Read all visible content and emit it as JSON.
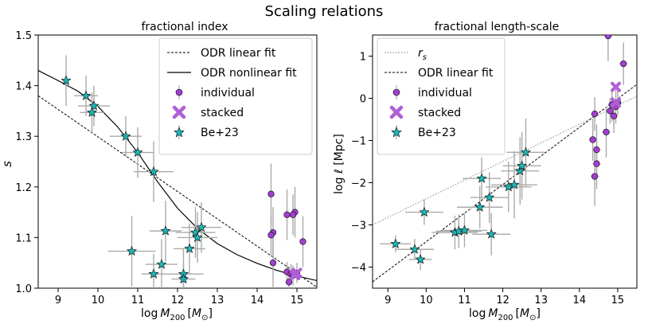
{
  "figure": {
    "title": "Scaling relations"
  },
  "colors": {
    "individual": "#a23fd0",
    "stacked": "#b05fd6",
    "be23": "#1fb5b5",
    "errorbar": "#aaaaaa",
    "rs": "#999999"
  },
  "chart_data": [
    {
      "type": "scatter",
      "title": "fractional index",
      "xlabel": "log M_200 [M_⊙]",
      "ylabel": "s",
      "xlim": [
        8.5,
        15.5
      ],
      "ylim": [
        1.0,
        1.5
      ],
      "xticks": [
        9,
        10,
        11,
        12,
        13,
        14,
        15
      ],
      "yticks": [
        1.0,
        1.1,
        1.2,
        1.3,
        1.4,
        1.5
      ],
      "ytick_labels": [
        "1.0",
        "1.1",
        "1.2",
        "1.3",
        "1.4",
        "1.5"
      ],
      "legend": {
        "position": "top-right",
        "entries": [
          "ODR linear fit",
          "ODR nonlinear fit",
          "individual",
          "stacked",
          "Be+23"
        ]
      },
      "fits": {
        "linear": [
          [
            8.5,
            1.38
          ],
          [
            15.5,
            1.002
          ]
        ],
        "nonlinear": [
          [
            8.5,
            1.43
          ],
          [
            9.0,
            1.41
          ],
          [
            9.5,
            1.389
          ],
          [
            10.0,
            1.359
          ],
          [
            10.5,
            1.318
          ],
          [
            11.0,
            1.268
          ],
          [
            11.5,
            1.21
          ],
          [
            12.0,
            1.158
          ],
          [
            12.5,
            1.118
          ],
          [
            13.0,
            1.088
          ],
          [
            13.5,
            1.066
          ],
          [
            14.0,
            1.049
          ],
          [
            14.5,
            1.035
          ],
          [
            15.0,
            1.024
          ],
          [
            15.5,
            1.015
          ]
        ]
      },
      "series": [
        {
          "name": "Be+23",
          "points": [
            [
              9.2,
              1.41,
              0.0,
              0.05
            ],
            [
              9.7,
              1.38,
              0.3,
              0.04
            ],
            [
              9.9,
              1.36,
              0.4,
              0.04
            ],
            [
              9.85,
              1.347,
              0.3,
              0.04
            ],
            [
              10.7,
              1.3,
              0.4,
              0.04
            ],
            [
              11.0,
              1.268,
              0.4,
              0.05
            ],
            [
              11.4,
              1.23,
              0.5,
              0.06
            ],
            [
              11.7,
              1.113,
              0.4,
              0.06
            ],
            [
              10.85,
              1.073,
              0.6,
              0.07
            ],
            [
              11.6,
              1.047,
              0.4,
              0.05
            ],
            [
              11.4,
              1.028,
              0.3,
              0.04
            ],
            [
              12.15,
              1.028,
              0.5,
              0.05
            ],
            [
              12.15,
              1.018,
              0.3,
              0.03
            ],
            [
              12.3,
              1.078,
              0.4,
              0.05
            ],
            [
              12.45,
              1.11,
              0.5,
              0.05
            ],
            [
              12.5,
              1.1,
              0.5,
              0.05
            ],
            [
              12.6,
              1.12,
              0.5,
              0.05
            ]
          ]
        },
        {
          "name": "individual",
          "points": [
            [
              14.35,
              1.186,
              0.05,
              0.06
            ],
            [
              14.4,
              1.11,
              0.05,
              0.05
            ],
            [
              14.35,
              1.105,
              0.05,
              0.04
            ],
            [
              14.4,
              1.05,
              0.05,
              0.05
            ],
            [
              14.75,
              1.145,
              0.05,
              0.05
            ],
            [
              14.95,
              1.15,
              0.05,
              0.05
            ],
            [
              15.15,
              1.092,
              0.05,
              0.05
            ],
            [
              14.9,
              1.145,
              0.05,
              0.04
            ],
            [
              14.75,
              1.032,
              0.05,
              0.02
            ],
            [
              14.85,
              1.028,
              0.05,
              0.02
            ],
            [
              15.0,
              1.03,
              0.05,
              0.02
            ],
            [
              14.9,
              1.025,
              0.05,
              0.02
            ],
            [
              14.8,
              1.012,
              0.05,
              0.02
            ]
          ]
        },
        {
          "name": "stacked",
          "points": [
            [
              14.95,
              1.026,
              0.05,
              0.005
            ],
            [
              15.0,
              1.03,
              0.05,
              0.005
            ]
          ]
        }
      ]
    },
    {
      "type": "scatter",
      "title": "fractional length-scale",
      "xlabel": "log M_200 [M_⊙]",
      "ylabel": "log ℓ [Mpc]",
      "xlim": [
        8.6,
        15.5
      ],
      "ylim": [
        -4.5,
        1.5
      ],
      "xticks": [
        9,
        10,
        11,
        12,
        13,
        14,
        15
      ],
      "yticks": [
        -4,
        -3,
        -2,
        -1,
        0,
        1
      ],
      "ytick_labels": [
        "−4",
        "−3",
        "−2",
        "−1",
        "0",
        "1"
      ],
      "legend": {
        "position": "top-left",
        "entries": [
          "r_s",
          "ODR linear fit",
          "individual",
          "stacked",
          "Be+23"
        ]
      },
      "fits": {
        "rs": [
          [
            8.6,
            -3.0
          ],
          [
            15.5,
            0.05
          ]
        ],
        "linear": [
          [
            8.6,
            -4.35
          ],
          [
            15.5,
            0.33
          ]
        ]
      },
      "series": [
        {
          "name": "Be+23",
          "points": [
            [
              9.2,
              -3.45,
              0.4,
              0.2
            ],
            [
              9.7,
              -3.58,
              0.5,
              0.25
            ],
            [
              9.85,
              -3.82,
              0.3,
              0.25
            ],
            [
              9.95,
              -2.7,
              0.5,
              0.3
            ],
            [
              10.75,
              -3.18,
              0.6,
              0.4
            ],
            [
              10.85,
              -3.15,
              0.6,
              0.4
            ],
            [
              11.0,
              -3.13,
              0.6,
              0.4
            ],
            [
              11.7,
              -3.22,
              0.5,
              0.5
            ],
            [
              11.4,
              -2.58,
              0.6,
              0.5
            ],
            [
              11.45,
              -1.9,
              0.5,
              0.5
            ],
            [
              11.65,
              -2.35,
              0.5,
              0.6
            ],
            [
              12.15,
              -2.1,
              0.6,
              0.6
            ],
            [
              12.3,
              -2.05,
              0.6,
              0.8
            ],
            [
              12.45,
              -1.72,
              0.5,
              0.8
            ],
            [
              12.5,
              -1.6,
              0.5,
              0.8
            ],
            [
              12.6,
              -1.28,
              0.5,
              0.8
            ]
          ]
        },
        {
          "name": "individual",
          "points": [
            [
              14.4,
              -0.37,
              0.1,
              0.4
            ],
            [
              14.35,
              -0.98,
              0.1,
              0.5
            ],
            [
              14.45,
              -1.22,
              0.1,
              0.6
            ],
            [
              14.45,
              -1.55,
              0.1,
              0.6
            ],
            [
              14.4,
              -1.85,
              0.1,
              0.7
            ],
            [
              14.7,
              -0.8,
              0.1,
              0.6
            ],
            [
              14.75,
              1.48,
              0.1,
              0.6
            ],
            [
              14.85,
              -0.15,
              0.1,
              0.4
            ],
            [
              14.9,
              -0.42,
              0.1,
              0.4
            ],
            [
              14.95,
              -0.2,
              0.1,
              0.4
            ],
            [
              15.0,
              -0.1,
              0.1,
              0.3
            ],
            [
              15.15,
              0.82,
              0.1,
              0.5
            ],
            [
              14.8,
              -0.3,
              0.1,
              0.3
            ]
          ]
        },
        {
          "name": "stacked",
          "points": [
            [
              14.95,
              0.27,
              0.05,
              0.05
            ],
            [
              14.95,
              -0.1,
              0.05,
              0.05
            ]
          ]
        }
      ]
    }
  ]
}
